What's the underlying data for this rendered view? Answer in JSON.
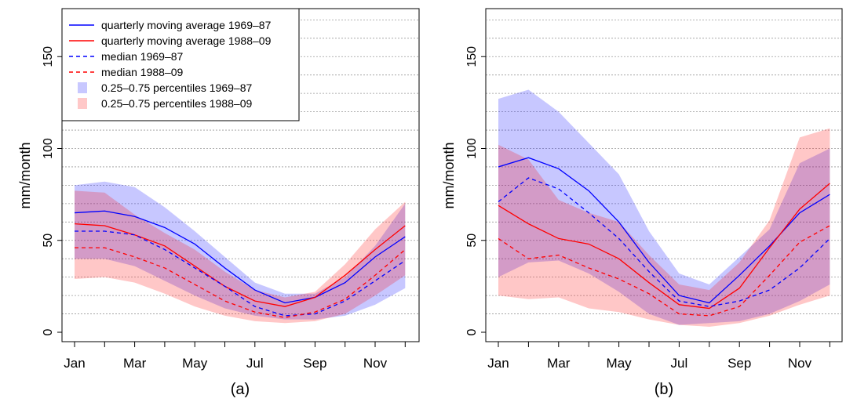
{
  "chart_data": [
    {
      "type": "line",
      "title": "",
      "panel_label": "(a)",
      "xlabel": "",
      "ylabel": "mm/month",
      "ylim": [
        0,
        170
      ],
      "yticks": [
        0,
        50,
        100,
        150
      ],
      "x": [
        "Jan",
        "Feb",
        "Mar",
        "Apr",
        "May",
        "Jun",
        "Jul",
        "Aug",
        "Sep",
        "Oct",
        "Nov",
        "Dec"
      ],
      "xtick_labels": [
        "Jan",
        "Mar",
        "May",
        "Jul",
        "Sep",
        "Nov"
      ],
      "grid": "horizontal dotted",
      "legend": {
        "placement": "top-left",
        "entries": [
          {
            "label": "quarterly moving average 1969–87",
            "style": "solid",
            "color": "#0000ee"
          },
          {
            "label": "quarterly moving average 1988–09",
            "style": "solid",
            "color": "#ee0000"
          },
          {
            "label": "median 1969–87",
            "style": "dashed",
            "color": "#0000ee"
          },
          {
            "label": "median 1988–09",
            "style": "dashed",
            "color": "#ee0000"
          },
          {
            "label": "0.25–0.75 percentiles 1969–87",
            "style": "band",
            "color": "#aaaaff"
          },
          {
            "label": "0.25–0.75 percentiles 1988–09",
            "style": "band",
            "color": "#ffaaaa"
          }
        ]
      },
      "bands": [
        {
          "name": "0.25–0.75 percentiles 1969–87",
          "color": "#aaaaff",
          "lower": [
            40,
            40,
            36,
            28,
            20,
            13,
            9,
            7,
            7,
            9,
            15,
            24
          ],
          "upper": [
            80,
            82,
            79,
            68,
            55,
            41,
            27,
            21,
            21,
            30,
            47,
            70
          ]
        },
        {
          "name": "0.25–0.75 percentiles 1988–09",
          "color": "#ffaaaa",
          "lower": [
            29,
            30,
            27,
            21,
            14,
            9,
            6,
            5,
            6,
            10,
            20,
            31
          ],
          "upper": [
            77,
            76,
            64,
            54,
            45,
            33,
            23,
            19,
            22,
            37,
            56,
            71
          ]
        }
      ],
      "series": [
        {
          "name": "quarterly moving average 1969–87",
          "style": "solid",
          "color": "#0000ee",
          "values": [
            65,
            66,
            63,
            57,
            48,
            35,
            23,
            16,
            19,
            27,
            41,
            52
          ]
        },
        {
          "name": "quarterly moving average 1988–09",
          "style": "solid",
          "color": "#ee0000",
          "values": [
            59,
            58,
            53,
            47,
            36,
            25,
            17,
            14,
            19,
            31,
            45,
            58
          ]
        },
        {
          "name": "median 1969–87",
          "style": "dashed",
          "color": "#0000ee",
          "values": [
            55,
            55,
            53,
            45,
            35,
            25,
            14,
            9,
            10,
            17,
            28,
            39
          ]
        },
        {
          "name": "median 1988–09",
          "style": "dashed",
          "color": "#ee0000",
          "values": [
            46,
            46,
            41,
            35,
            26,
            17,
            11,
            8,
            11,
            18,
            31,
            45
          ]
        }
      ]
    },
    {
      "type": "line",
      "title": "",
      "panel_label": "(b)",
      "xlabel": "",
      "ylabel": "mm/month",
      "ylim": [
        0,
        170
      ],
      "yticks": [
        0,
        50,
        100,
        150
      ],
      "x": [
        "Jan",
        "Feb",
        "Mar",
        "Apr",
        "May",
        "Jun",
        "Jul",
        "Aug",
        "Sep",
        "Oct",
        "Nov",
        "Dec"
      ],
      "xtick_labels": [
        "Jan",
        "Mar",
        "May",
        "Jul",
        "Sep",
        "Nov"
      ],
      "grid": "horizontal dotted",
      "bands": [
        {
          "name": "0.25–0.75 percentiles 1969–87",
          "color": "#aaaaff",
          "lower": [
            30,
            38,
            39,
            32,
            22,
            10,
            4,
            5,
            6,
            10,
            17,
            26
          ],
          "upper": [
            127,
            132,
            120,
            103,
            86,
            55,
            32,
            26,
            41,
            56,
            92,
            100
          ]
        },
        {
          "name": "0.25–0.75 percentiles 1988–09",
          "color": "#ffaaaa",
          "lower": [
            20,
            18,
            19,
            13,
            11,
            7,
            4,
            3,
            5,
            9,
            15,
            20
          ],
          "upper": [
            102,
            94,
            72,
            65,
            60,
            42,
            26,
            23,
            38,
            61,
            106,
            111
          ]
        }
      ],
      "series": [
        {
          "name": "quarterly moving average 1969–87",
          "style": "solid",
          "color": "#0000ee",
          "values": [
            90,
            95,
            89,
            77,
            60,
            38,
            20,
            16,
            31,
            47,
            65,
            75
          ]
        },
        {
          "name": "quarterly moving average 1988–09",
          "style": "solid",
          "color": "#ee0000",
          "values": [
            69,
            59,
            51,
            48,
            40,
            27,
            15,
            13,
            24,
            46,
            67,
            81
          ]
        },
        {
          "name": "median 1969–87",
          "style": "dashed",
          "color": "#0000ee",
          "values": [
            71,
            84,
            78,
            65,
            51,
            33,
            17,
            14,
            17,
            23,
            35,
            51
          ]
        },
        {
          "name": "median 1988–09",
          "style": "dashed",
          "color": "#ee0000",
          "values": [
            51,
            40,
            42,
            35,
            29,
            21,
            10,
            9,
            14,
            31,
            49,
            58
          ]
        }
      ]
    }
  ]
}
